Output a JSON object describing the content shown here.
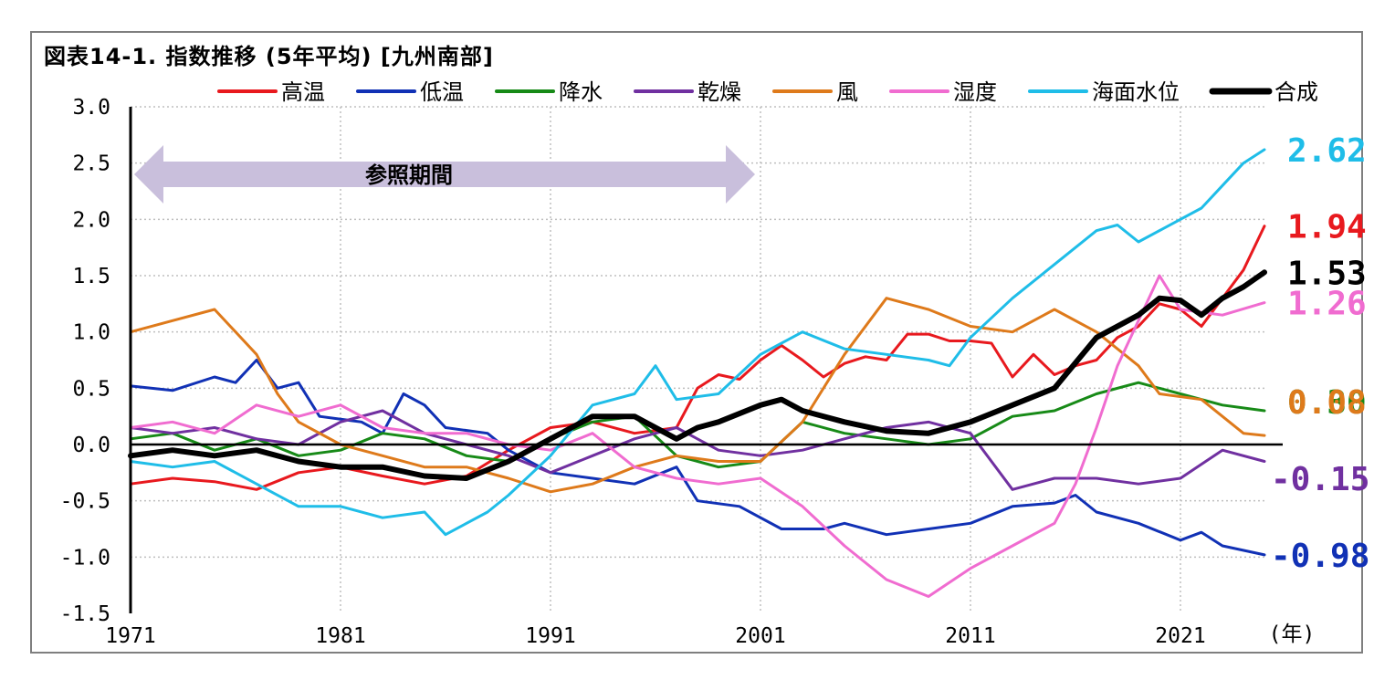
{
  "chart_data": {
    "type": "line",
    "title": "図表14-1. 指数推移 (5年平均) [九州南部]",
    "x_unit": "(年)",
    "x_tick_labels": [
      "1971",
      "1981",
      "1991",
      "2001",
      "2011",
      "2021"
    ],
    "x_range": [
      1971,
      2025
    ],
    "ylim": [
      -1.5,
      3.0
    ],
    "y_tick_labels": [
      "3.0",
      "2.5",
      "2.0",
      "1.5",
      "1.0",
      "0.5",
      "0.0",
      "-0.5",
      "-1.0",
      "-1.5"
    ],
    "grid": "dotted",
    "legend_position": "top",
    "annotation": {
      "label": "参照期間",
      "from": 1971,
      "to": 2001
    },
    "series": [
      {
        "name": "高温",
        "color": "#e8191e",
        "end_label": "1.94",
        "points": [
          [
            1971,
            -0.35
          ],
          [
            1973,
            -0.3
          ],
          [
            1975,
            -0.33
          ],
          [
            1977,
            -0.4
          ],
          [
            1979,
            -0.25
          ],
          [
            1981,
            -0.2
          ],
          [
            1983,
            -0.28
          ],
          [
            1985,
            -0.35
          ],
          [
            1987,
            -0.28
          ],
          [
            1989,
            -0.05
          ],
          [
            1991,
            0.15
          ],
          [
            1993,
            0.2
          ],
          [
            1995,
            0.1
          ],
          [
            1997,
            0.15
          ],
          [
            1998,
            0.5
          ],
          [
            1999,
            0.62
          ],
          [
            2000,
            0.58
          ],
          [
            2001,
            0.75
          ],
          [
            2002,
            0.88
          ],
          [
            2003,
            0.75
          ],
          [
            2004,
            0.6
          ],
          [
            2005,
            0.72
          ],
          [
            2006,
            0.78
          ],
          [
            2007,
            0.75
          ],
          [
            2008,
            0.98
          ],
          [
            2009,
            0.98
          ],
          [
            2010,
            0.92
          ],
          [
            2011,
            0.92
          ],
          [
            2012,
            0.9
          ],
          [
            2013,
            0.6
          ],
          [
            2014,
            0.8
          ],
          [
            2015,
            0.62
          ],
          [
            2016,
            0.7
          ],
          [
            2017,
            0.75
          ],
          [
            2018,
            0.95
          ],
          [
            2019,
            1.05
          ],
          [
            2020,
            1.25
          ],
          [
            2021,
            1.2
          ],
          [
            2022,
            1.05
          ],
          [
            2023,
            1.3
          ],
          [
            2024,
            1.55
          ],
          [
            2025,
            1.94
          ]
        ]
      },
      {
        "name": "低温",
        "color": "#1131b5",
        "end_label": "-0.98",
        "points": [
          [
            1971,
            0.52
          ],
          [
            1973,
            0.48
          ],
          [
            1975,
            0.6
          ],
          [
            1976,
            0.55
          ],
          [
            1977,
            0.75
          ],
          [
            1978,
            0.5
          ],
          [
            1979,
            0.55
          ],
          [
            1980,
            0.25
          ],
          [
            1982,
            0.2
          ],
          [
            1983,
            0.1
          ],
          [
            1984,
            0.45
          ],
          [
            1985,
            0.35
          ],
          [
            1986,
            0.15
          ],
          [
            1988,
            0.1
          ],
          [
            1989,
            -0.05
          ],
          [
            1991,
            -0.25
          ],
          [
            1993,
            -0.3
          ],
          [
            1995,
            -0.35
          ],
          [
            1997,
            -0.2
          ],
          [
            1998,
            -0.5
          ],
          [
            2000,
            -0.55
          ],
          [
            2002,
            -0.75
          ],
          [
            2004,
            -0.75
          ],
          [
            2005,
            -0.7
          ],
          [
            2007,
            -0.8
          ],
          [
            2009,
            -0.75
          ],
          [
            2011,
            -0.7
          ],
          [
            2013,
            -0.55
          ],
          [
            2015,
            -0.52
          ],
          [
            2016,
            -0.45
          ],
          [
            2017,
            -0.6
          ],
          [
            2019,
            -0.7
          ],
          [
            2021,
            -0.85
          ],
          [
            2022,
            -0.78
          ],
          [
            2023,
            -0.9
          ],
          [
            2025,
            -0.98
          ]
        ]
      },
      {
        "name": "降水",
        "color": "#178a17",
        "end_label": "0.30",
        "points": [
          [
            1971,
            0.05
          ],
          [
            1973,
            0.1
          ],
          [
            1975,
            -0.05
          ],
          [
            1977,
            0.05
          ],
          [
            1979,
            -0.1
          ],
          [
            1981,
            -0.05
          ],
          [
            1983,
            0.1
          ],
          [
            1985,
            0.05
          ],
          [
            1987,
            -0.1
          ],
          [
            1989,
            -0.15
          ],
          [
            1991,
            0.05
          ],
          [
            1993,
            0.2
          ],
          [
            1995,
            0.25
          ],
          [
            1997,
            -0.1
          ],
          [
            1999,
            -0.2
          ],
          [
            2001,
            -0.15
          ],
          [
            2003,
            0.2
          ],
          [
            2005,
            0.1
          ],
          [
            2007,
            0.05
          ],
          [
            2009,
            0.0
          ],
          [
            2011,
            0.05
          ],
          [
            2013,
            0.25
          ],
          [
            2015,
            0.3
          ],
          [
            2017,
            0.45
          ],
          [
            2019,
            0.55
          ],
          [
            2021,
            0.45
          ],
          [
            2023,
            0.35
          ],
          [
            2025,
            0.3
          ]
        ]
      },
      {
        "name": "乾燥",
        "color": "#7030a0",
        "end_label": "-0.15",
        "points": [
          [
            1971,
            0.15
          ],
          [
            1973,
            0.1
          ],
          [
            1975,
            0.15
          ],
          [
            1977,
            0.05
          ],
          [
            1979,
            0.0
          ],
          [
            1981,
            0.2
          ],
          [
            1983,
            0.3
          ],
          [
            1985,
            0.1
          ],
          [
            1987,
            0.0
          ],
          [
            1989,
            -0.1
          ],
          [
            1991,
            -0.25
          ],
          [
            1993,
            -0.1
          ],
          [
            1995,
            0.05
          ],
          [
            1997,
            0.15
          ],
          [
            1999,
            -0.05
          ],
          [
            2001,
            -0.1
          ],
          [
            2003,
            -0.05
          ],
          [
            2005,
            0.05
          ],
          [
            2007,
            0.15
          ],
          [
            2009,
            0.2
          ],
          [
            2011,
            0.1
          ],
          [
            2013,
            -0.4
          ],
          [
            2015,
            -0.3
          ],
          [
            2017,
            -0.3
          ],
          [
            2019,
            -0.35
          ],
          [
            2021,
            -0.3
          ],
          [
            2023,
            -0.05
          ],
          [
            2025,
            -0.15
          ]
        ]
      },
      {
        "name": "風",
        "color": "#de7a1b",
        "end_label": "0.08",
        "points": [
          [
            1971,
            1.0
          ],
          [
            1973,
            1.1
          ],
          [
            1975,
            1.2
          ],
          [
            1977,
            0.8
          ],
          [
            1978,
            0.45
          ],
          [
            1979,
            0.2
          ],
          [
            1981,
            0.0
          ],
          [
            1983,
            -0.1
          ],
          [
            1985,
            -0.2
          ],
          [
            1987,
            -0.2
          ],
          [
            1989,
            -0.3
          ],
          [
            1991,
            -0.42
          ],
          [
            1993,
            -0.35
          ],
          [
            1995,
            -0.2
          ],
          [
            1997,
            -0.1
          ],
          [
            1999,
            -0.15
          ],
          [
            2001,
            -0.15
          ],
          [
            2003,
            0.2
          ],
          [
            2005,
            0.8
          ],
          [
            2007,
            1.3
          ],
          [
            2009,
            1.2
          ],
          [
            2011,
            1.05
          ],
          [
            2013,
            1.0
          ],
          [
            2015,
            1.2
          ],
          [
            2017,
            1.0
          ],
          [
            2019,
            0.7
          ],
          [
            2020,
            0.45
          ],
          [
            2022,
            0.4
          ],
          [
            2024,
            0.1
          ],
          [
            2025,
            0.08
          ]
        ]
      },
      {
        "name": "湿度",
        "color": "#f06cd0",
        "end_label": "1.26",
        "points": [
          [
            1971,
            0.15
          ],
          [
            1973,
            0.2
          ],
          [
            1975,
            0.1
          ],
          [
            1977,
            0.35
          ],
          [
            1979,
            0.25
          ],
          [
            1981,
            0.35
          ],
          [
            1983,
            0.15
          ],
          [
            1985,
            0.1
          ],
          [
            1987,
            0.1
          ],
          [
            1989,
            0.0
          ],
          [
            1991,
            -0.05
          ],
          [
            1993,
            0.1
          ],
          [
            1995,
            -0.2
          ],
          [
            1997,
            -0.3
          ],
          [
            1999,
            -0.35
          ],
          [
            2001,
            -0.3
          ],
          [
            2003,
            -0.55
          ],
          [
            2005,
            -0.9
          ],
          [
            2007,
            -1.2
          ],
          [
            2009,
            -1.35
          ],
          [
            2011,
            -1.1
          ],
          [
            2013,
            -0.9
          ],
          [
            2015,
            -0.7
          ],
          [
            2016,
            -0.35
          ],
          [
            2017,
            0.15
          ],
          [
            2018,
            0.7
          ],
          [
            2019,
            1.1
          ],
          [
            2020,
            1.5
          ],
          [
            2021,
            1.2
          ],
          [
            2023,
            1.15
          ],
          [
            2025,
            1.26
          ]
        ]
      },
      {
        "name": "海面水位",
        "color": "#1fbde8",
        "end_label": "2.62",
        "points": [
          [
            1971,
            -0.15
          ],
          [
            1973,
            -0.2
          ],
          [
            1975,
            -0.15
          ],
          [
            1977,
            -0.35
          ],
          [
            1979,
            -0.55
          ],
          [
            1981,
            -0.55
          ],
          [
            1983,
            -0.65
          ],
          [
            1985,
            -0.6
          ],
          [
            1986,
            -0.8
          ],
          [
            1988,
            -0.6
          ],
          [
            1989,
            -0.45
          ],
          [
            1991,
            -0.1
          ],
          [
            1993,
            0.35
          ],
          [
            1995,
            0.45
          ],
          [
            1996,
            0.7
          ],
          [
            1997,
            0.4
          ],
          [
            1999,
            0.45
          ],
          [
            2001,
            0.8
          ],
          [
            2003,
            1.0
          ],
          [
            2005,
            0.85
          ],
          [
            2007,
            0.8
          ],
          [
            2009,
            0.75
          ],
          [
            2010,
            0.7
          ],
          [
            2011,
            0.95
          ],
          [
            2013,
            1.3
          ],
          [
            2015,
            1.6
          ],
          [
            2017,
            1.9
          ],
          [
            2018,
            1.95
          ],
          [
            2019,
            1.8
          ],
          [
            2021,
            2.0
          ],
          [
            2022,
            2.1
          ],
          [
            2023,
            2.3
          ],
          [
            2024,
            2.5
          ],
          [
            2025,
            2.62
          ]
        ]
      },
      {
        "name": "合成",
        "color": "#000000",
        "end_label": "1.53",
        "points": [
          [
            1971,
            -0.1
          ],
          [
            1973,
            -0.05
          ],
          [
            1975,
            -0.1
          ],
          [
            1977,
            -0.05
          ],
          [
            1979,
            -0.15
          ],
          [
            1981,
            -0.2
          ],
          [
            1983,
            -0.2
          ],
          [
            1985,
            -0.28
          ],
          [
            1987,
            -0.3
          ],
          [
            1989,
            -0.15
          ],
          [
            1991,
            0.05
          ],
          [
            1992,
            0.15
          ],
          [
            1993,
            0.25
          ],
          [
            1995,
            0.25
          ],
          [
            1997,
            0.05
          ],
          [
            1998,
            0.15
          ],
          [
            1999,
            0.2
          ],
          [
            2001,
            0.35
          ],
          [
            2002,
            0.4
          ],
          [
            2003,
            0.3
          ],
          [
            2005,
            0.2
          ],
          [
            2007,
            0.12
          ],
          [
            2009,
            0.1
          ],
          [
            2011,
            0.2
          ],
          [
            2013,
            0.35
          ],
          [
            2015,
            0.5
          ],
          [
            2017,
            0.95
          ],
          [
            2019,
            1.15
          ],
          [
            2020,
            1.3
          ],
          [
            2021,
            1.28
          ],
          [
            2022,
            1.15
          ],
          [
            2023,
            1.3
          ],
          [
            2024,
            1.4
          ],
          [
            2025,
            1.53
          ]
        ]
      }
    ]
  }
}
